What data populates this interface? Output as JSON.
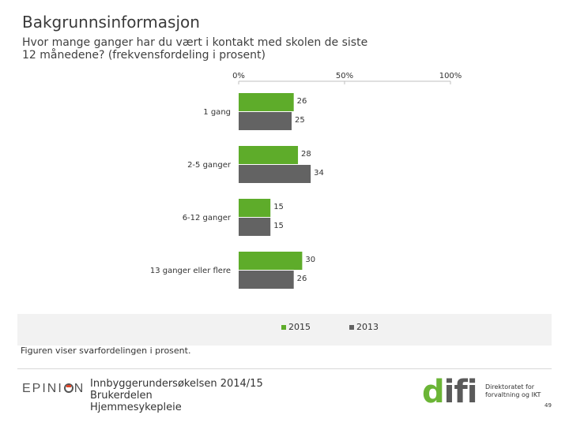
{
  "header": {
    "title": "Bakgrunnsinformasjon",
    "subtitle_line1": "Hvor mange ganger har du vært i kontakt med skolen de siste",
    "subtitle_line2": "12 månedene? (frekvensfordeling i prosent)"
  },
  "chart_data": {
    "type": "bar",
    "orientation": "horizontal",
    "title": "Hvor mange ganger har du vært i kontakt med skolen de siste 12 månedene? (frekvensfordeling i prosent)",
    "categories": [
      "1 gang",
      "2-5 ganger",
      "6-12 ganger",
      "13 ganger eller flere"
    ],
    "series": [
      {
        "name": "2015",
        "values": [
          26,
          28,
          15,
          30
        ],
        "color": "#5eac2a"
      },
      {
        "name": "2013",
        "values": [
          25,
          34,
          15,
          26
        ],
        "color": "#636363"
      }
    ],
    "x_ticks": [
      "0%",
      "50%",
      "100%"
    ],
    "xlim": [
      0,
      100
    ],
    "legend": "bottom"
  },
  "footnote": "Figuren viser svarfordelingen i prosent.",
  "footer": {
    "brand": "EPINION",
    "line1": "Innbyggerundersøkelsen 2014/15",
    "line2": "Brukerdelen",
    "line3": "Hjemmesykepleie",
    "logo_word": "difi",
    "logo_sub1": "Direktoratet for",
    "logo_sub2": "forvaltning og IKT",
    "page_number": "49"
  },
  "colors": {
    "green": "#5eac2a",
    "gray": "#636363"
  }
}
